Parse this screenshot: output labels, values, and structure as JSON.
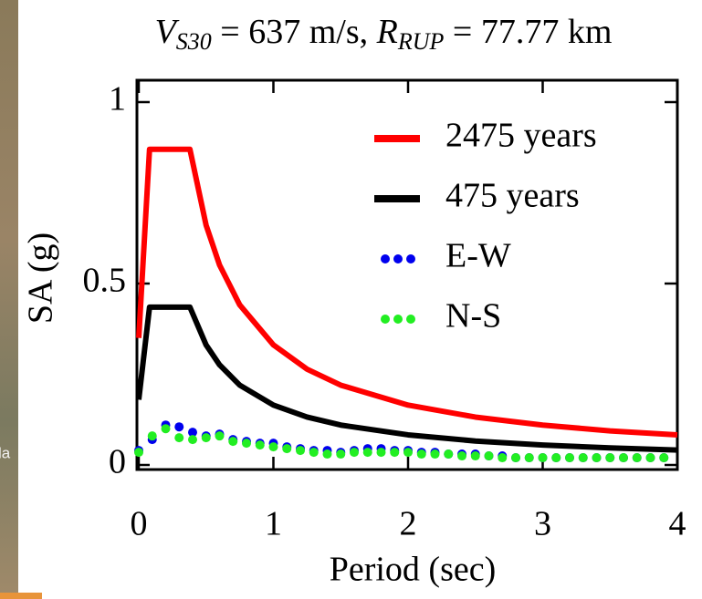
{
  "chart_data": {
    "type": "line",
    "title_parts": [
      {
        "text": "V",
        "italic": true,
        "sub": false
      },
      {
        "text": "S30",
        "italic": true,
        "sub": true
      },
      {
        "text": " = 637 m/s, ",
        "italic": false,
        "sub": false
      },
      {
        "text": "R",
        "italic": true,
        "sub": false
      },
      {
        "text": "RUP",
        "italic": true,
        "sub": true
      },
      {
        "text": " = 77.77 km",
        "italic": false,
        "sub": false
      }
    ],
    "x_label": "Period (sec)",
    "y_label": "SA (g)",
    "background_fragment": "la",
    "xlim": [
      0,
      4
    ],
    "ylim": [
      0,
      1
    ],
    "xticks": [
      0,
      1,
      2,
      3,
      4
    ],
    "yticks": [
      0,
      0.5,
      1
    ],
    "legend": "upper-right",
    "series": [
      {
        "name": "2475 years",
        "color": "#ff0000",
        "style": "solid",
        "x": [
          0,
          0.08,
          0.38,
          0.5,
          0.6,
          0.75,
          1,
          1.25,
          1.5,
          2,
          2.5,
          3,
          3.5,
          4
        ],
        "values": [
          0.35,
          0.87,
          0.87,
          0.661,
          0.551,
          0.441,
          0.331,
          0.264,
          0.22,
          0.165,
          0.132,
          0.11,
          0.094,
          0.083
        ]
      },
      {
        "name": "475 years",
        "color": "#000000",
        "style": "solid",
        "x": [
          0,
          0.08,
          0.38,
          0.5,
          0.6,
          0.75,
          1,
          1.25,
          1.5,
          2,
          2.5,
          3,
          3.5,
          4
        ],
        "values": [
          0.18,
          0.435,
          0.435,
          0.331,
          0.276,
          0.22,
          0.165,
          0.132,
          0.11,
          0.083,
          0.066,
          0.055,
          0.047,
          0.041
        ]
      },
      {
        "name": "E-W",
        "color": "#0000ee",
        "style": "dotted",
        "x": [
          0,
          0.1,
          0.2,
          0.3,
          0.4,
          0.5,
          0.6,
          0.7,
          0.8,
          0.9,
          1,
          1.1,
          1.2,
          1.3,
          1.4,
          1.5,
          1.6,
          1.7,
          1.8,
          1.9,
          2,
          2.1,
          2.2,
          2.3,
          2.4,
          2.5,
          2.6,
          2.7,
          2.8,
          2.9,
          3,
          3.1,
          3.2,
          3.3,
          3.4,
          3.5,
          3.6,
          3.7,
          3.8,
          3.9
        ],
        "values": [
          0.04,
          0.07,
          0.11,
          0.105,
          0.09,
          0.08,
          0.085,
          0.07,
          0.065,
          0.06,
          0.06,
          0.05,
          0.045,
          0.04,
          0.04,
          0.035,
          0.04,
          0.045,
          0.045,
          0.04,
          0.04,
          0.035,
          0.035,
          0.03,
          0.03,
          0.03,
          0.025,
          0.025,
          0.02,
          0.02,
          0.02,
          0.02,
          0.02,
          0.02,
          0.02,
          0.02,
          0.02,
          0.02,
          0.02,
          0.02
        ]
      },
      {
        "name": "N-S",
        "color": "#22ee22",
        "style": "dotted",
        "x": [
          0,
          0.1,
          0.2,
          0.3,
          0.4,
          0.5,
          0.6,
          0.7,
          0.8,
          0.9,
          1,
          1.1,
          1.2,
          1.3,
          1.4,
          1.5,
          1.6,
          1.7,
          1.8,
          1.9,
          2,
          2.1,
          2.2,
          2.3,
          2.4,
          2.5,
          2.6,
          2.7,
          2.8,
          2.9,
          3,
          3.1,
          3.2,
          3.3,
          3.4,
          3.5,
          3.6,
          3.7,
          3.8,
          3.9
        ],
        "values": [
          0.035,
          0.08,
          0.1,
          0.075,
          0.07,
          0.075,
          0.08,
          0.065,
          0.06,
          0.055,
          0.05,
          0.045,
          0.04,
          0.035,
          0.03,
          0.03,
          0.035,
          0.035,
          0.035,
          0.035,
          0.035,
          0.03,
          0.03,
          0.03,
          0.025,
          0.025,
          0.025,
          0.02,
          0.02,
          0.02,
          0.02,
          0.02,
          0.02,
          0.02,
          0.02,
          0.02,
          0.02,
          0.02,
          0.02,
          0.02
        ]
      }
    ]
  }
}
